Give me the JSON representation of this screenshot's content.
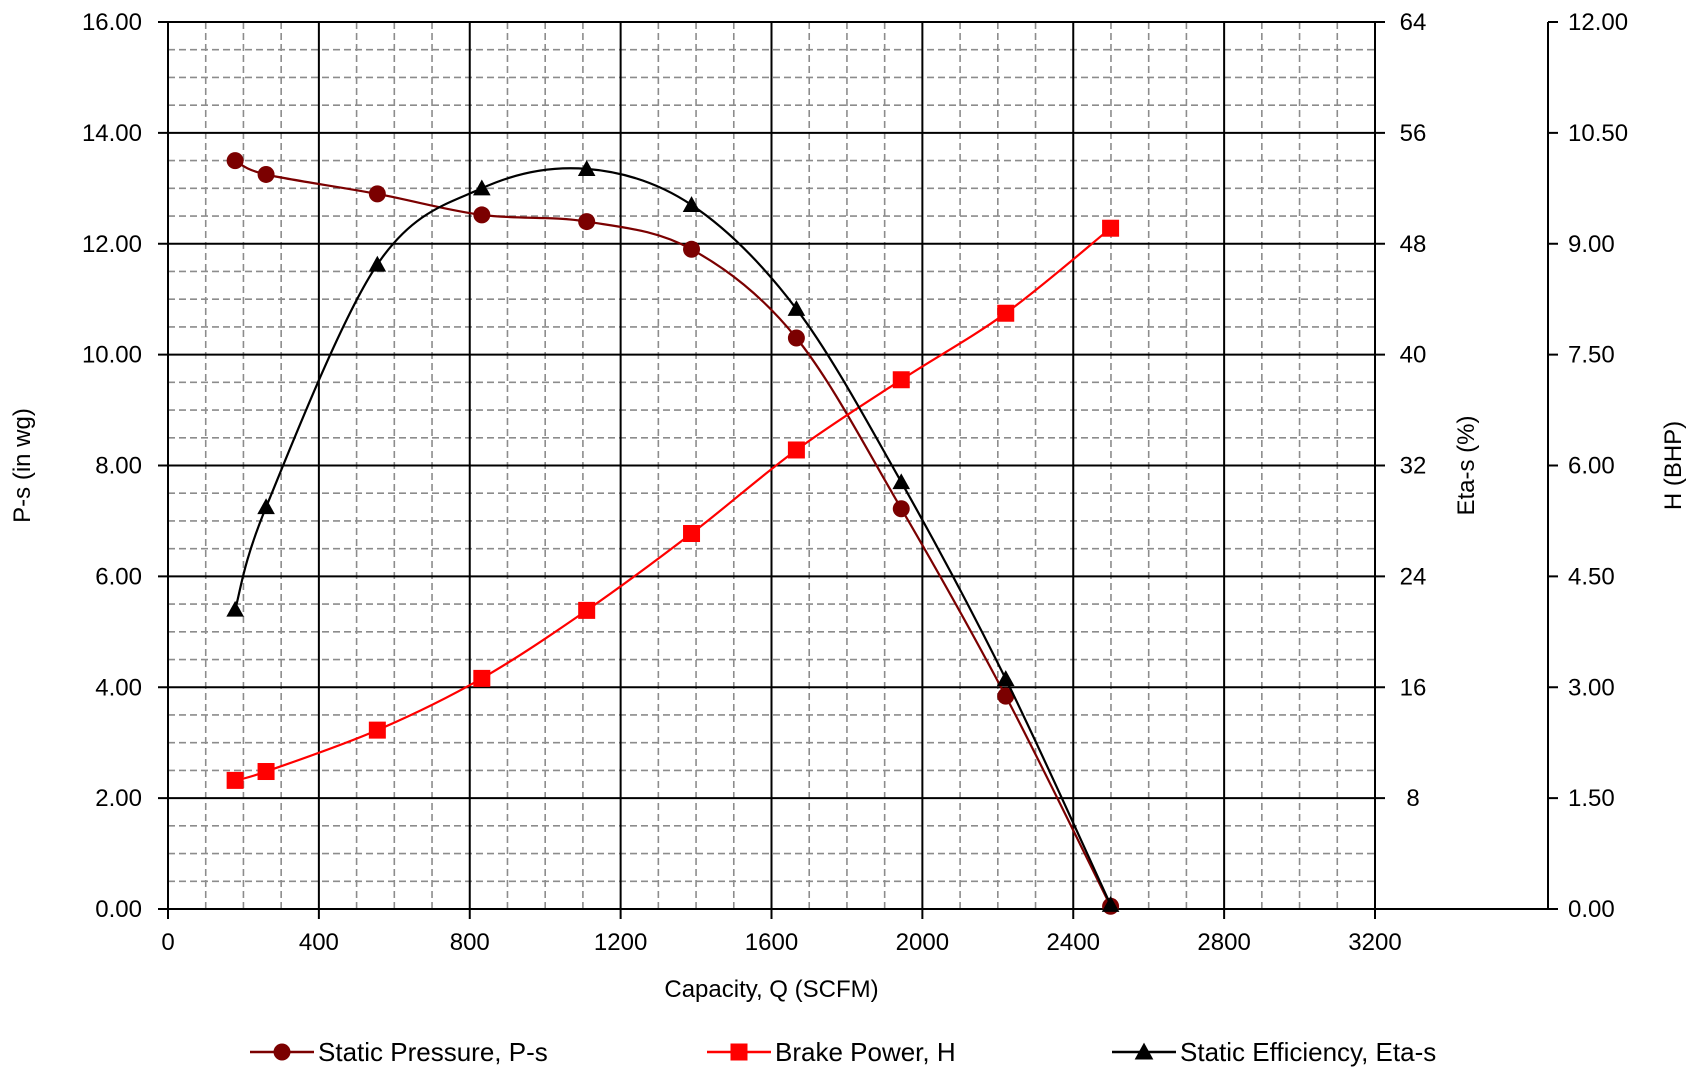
{
  "chart_data": {
    "type": "line",
    "xlabel": "Capacity, Q (SCFM)",
    "x_ticks": [
      "0",
      "400",
      "800",
      "1200",
      "1600",
      "2000",
      "2400",
      "2800",
      "3200"
    ],
    "xlim": [
      0,
      3200
    ],
    "axes": {
      "left": {
        "label": "P-s (in wg)",
        "range": [
          0,
          16
        ],
        "ticks": [
          "0.00",
          "2.00",
          "4.00",
          "6.00",
          "8.00",
          "10.00",
          "12.00",
          "14.00",
          "16.00"
        ]
      },
      "right1": {
        "label": "Eta-s (%)",
        "range": [
          0,
          64
        ],
        "ticks": [
          "",
          "8",
          "16",
          "24",
          "32",
          "40",
          "48",
          "56",
          "64"
        ]
      },
      "right2": {
        "label": "H (BHP)",
        "range": [
          0,
          12
        ],
        "ticks": [
          "0.00",
          "1.50",
          "3.00",
          "4.50",
          "6.00",
          "7.50",
          "9.00",
          "10.50",
          "12.00"
        ]
      }
    },
    "grid": true,
    "legend_position": "bottom",
    "series": [
      {
        "name": "Static Pressure, P-s",
        "axis": "left",
        "color": "#7b0000",
        "marker": "circle",
        "x": [
          178,
          260,
          555,
          832,
          1110,
          1388,
          1666,
          1944,
          2221,
          2499
        ],
        "y": [
          13.5,
          13.25,
          12.9,
          12.52,
          12.4,
          11.9,
          10.3,
          7.22,
          3.84,
          0.05
        ]
      },
      {
        "name": "Brake Power, H",
        "axis": "right2",
        "color": "#ff0000",
        "marker": "square",
        "x": [
          178,
          260,
          555,
          832,
          1110,
          1388,
          1666,
          1944,
          2221,
          2499
        ],
        "y": [
          1.74,
          1.86,
          2.42,
          3.12,
          4.04,
          5.08,
          6.21,
          7.16,
          8.06,
          9.21
        ]
      },
      {
        "name": "Static Efficiency, Eta-s",
        "axis": "right1",
        "color": "#000000",
        "marker": "triangle",
        "x": [
          178,
          260,
          555,
          832,
          1110,
          1388,
          1666,
          1944,
          2221,
          2499
        ],
        "y": [
          21.6,
          29.0,
          46.5,
          52.0,
          53.4,
          50.8,
          43.3,
          30.8,
          16.6,
          0.3
        ]
      }
    ]
  }
}
